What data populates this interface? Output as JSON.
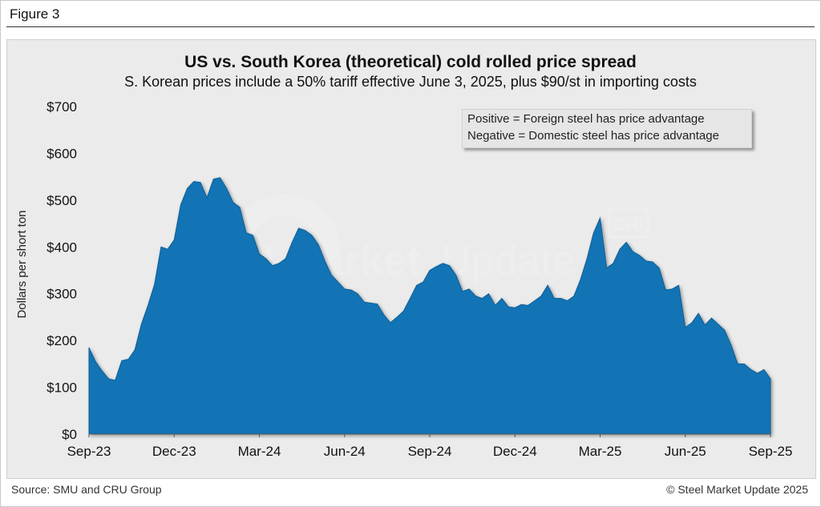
{
  "figure_label": "Figure 3",
  "footer": {
    "source": "Source: SMU and CRU Group",
    "copyright": "© Steel Market Update 2025"
  },
  "watermark": {
    "text_bold": "Steel Market",
    "text_light": "Update",
    "logo": "CRU"
  },
  "colors": {
    "area_fill": "#1273b5",
    "area_stroke": "#0e5f96",
    "panel": "#ebebeb"
  },
  "chart_data": {
    "type": "area",
    "title": "US vs. South Korea (theoretical) cold rolled price spread",
    "subtitle": "S. Korean prices include a 50% tariff effective June 3, 2025, plus $90/st in importing costs",
    "ylabel": "Dollars per short ton",
    "xlabel": "",
    "ylim": [
      0,
      700
    ],
    "y_ticks": [
      0,
      100,
      200,
      300,
      400,
      500,
      600,
      700
    ],
    "y_tick_labels": [
      "$0",
      "$100",
      "$200",
      "$300",
      "$400",
      "$500",
      "$600",
      "$700"
    ],
    "x_tick_labels": [
      "Sep-23",
      "Dec-23",
      "Mar-24",
      "Jun-24",
      "Sep-24",
      "Dec-24",
      "Mar-25",
      "Jun-25",
      "Sep-25"
    ],
    "x_tick_index": [
      0,
      13,
      26,
      39,
      52,
      65,
      78,
      91,
      104
    ],
    "legend_lines": [
      "Positive = Foreign steel has price advantage",
      "Negative = Domestic steel has price advantage"
    ],
    "grid": false,
    "series": [
      {
        "name": "Price spread",
        "frequency": "weekly",
        "values": [
          185,
          155,
          135,
          118,
          115,
          157,
          160,
          180,
          235,
          275,
          320,
          400,
          395,
          415,
          490,
          525,
          540,
          538,
          505,
          545,
          548,
          525,
          495,
          485,
          430,
          425,
          385,
          375,
          360,
          365,
          375,
          410,
          440,
          435,
          425,
          405,
          370,
          340,
          325,
          310,
          308,
          300,
          282,
          280,
          278,
          255,
          238,
          250,
          263,
          290,
          318,
          325,
          350,
          358,
          365,
          360,
          340,
          305,
          310,
          295,
          290,
          300,
          275,
          290,
          272,
          270,
          277,
          275,
          285,
          295,
          318,
          290,
          290,
          285,
          295,
          330,
          375,
          430,
          462,
          355,
          365,
          395,
          410,
          390,
          382,
          370,
          368,
          355,
          308,
          310,
          318,
          228,
          238,
          258,
          233,
          248,
          235,
          222,
          190,
          150,
          150,
          138,
          130,
          138,
          118
        ]
      }
    ]
  }
}
